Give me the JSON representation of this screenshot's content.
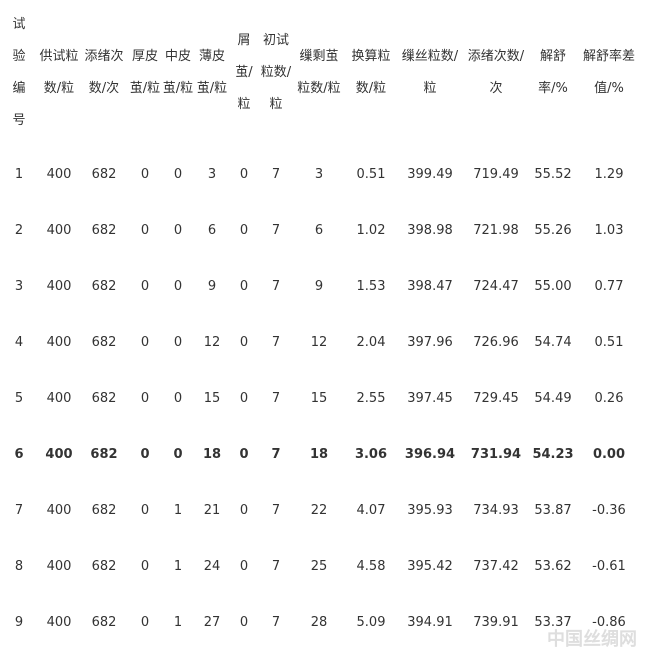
{
  "table": {
    "headers": [
      "试验编号",
      "供试粒数/粒",
      "添绪次数/次",
      "厚皮茧/粒",
      "中皮茧/粒",
      "薄皮茧/粒",
      "屑茧/粒",
      "初试粒数/粒",
      "缫剩茧粒数/粒",
      "换算粒数/粒",
      "缫丝粒数/粒",
      "添绪次数/次",
      "解舒率/%",
      "解舒率差值/%"
    ],
    "rows": [
      [
        "1",
        "400",
        "682",
        "0",
        "0",
        "3",
        "0",
        "7",
        "3",
        "0.51",
        "399.49",
        "719.49",
        "55.52",
        "1.29"
      ],
      [
        "2",
        "400",
        "682",
        "0",
        "0",
        "6",
        "0",
        "7",
        "6",
        "1.02",
        "398.98",
        "721.98",
        "55.26",
        "1.03"
      ],
      [
        "3",
        "400",
        "682",
        "0",
        "0",
        "9",
        "0",
        "7",
        "9",
        "1.53",
        "398.47",
        "724.47",
        "55.00",
        "0.77"
      ],
      [
        "4",
        "400",
        "682",
        "0",
        "0",
        "12",
        "0",
        "7",
        "12",
        "2.04",
        "397.96",
        "726.96",
        "54.74",
        "0.51"
      ],
      [
        "5",
        "400",
        "682",
        "0",
        "0",
        "15",
        "0",
        "7",
        "15",
        "2.55",
        "397.45",
        "729.45",
        "54.49",
        "0.26"
      ],
      [
        "6",
        "400",
        "682",
        "0",
        "0",
        "18",
        "0",
        "7",
        "18",
        "3.06",
        "396.94",
        "731.94",
        "54.23",
        "0.00"
      ],
      [
        "7",
        "400",
        "682",
        "0",
        "1",
        "21",
        "0",
        "7",
        "22",
        "4.07",
        "395.93",
        "734.93",
        "53.87",
        "-0.36"
      ],
      [
        "8",
        "400",
        "682",
        "0",
        "1",
        "24",
        "0",
        "7",
        "25",
        "4.58",
        "395.42",
        "737.42",
        "53.62",
        "-0.61"
      ],
      [
        "9",
        "400",
        "682",
        "0",
        "1",
        "27",
        "0",
        "7",
        "28",
        "5.09",
        "394.91",
        "739.91",
        "53.37",
        "-0.86"
      ]
    ]
  },
  "watermark": "中国丝绸网"
}
